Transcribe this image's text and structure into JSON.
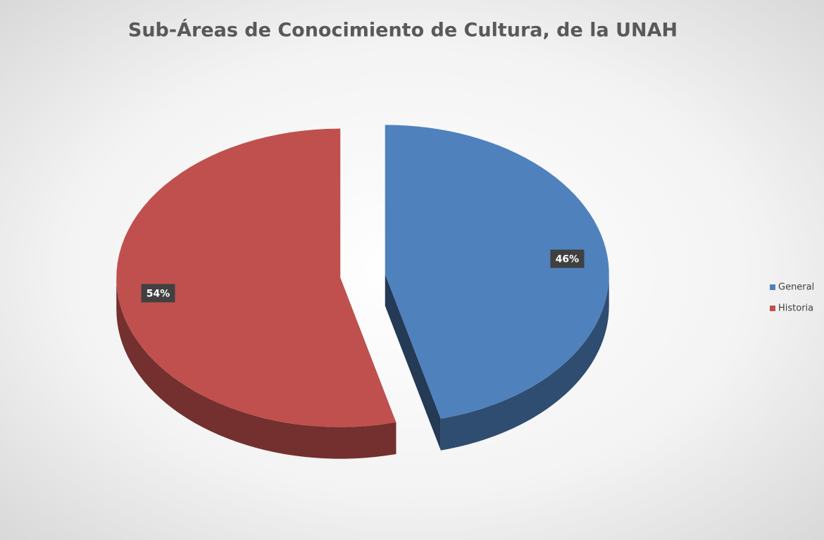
{
  "chart_data": {
    "type": "pie",
    "title": "Sub-Áreas de Conocimiento de Cultura, de la UNAH",
    "categories": [
      "General",
      "Historia"
    ],
    "values": [
      46,
      54
    ],
    "value_labels": [
      "46%",
      "54%"
    ],
    "colors": [
      "#4f81bd",
      "#c0504d"
    ],
    "legend": "right"
  }
}
